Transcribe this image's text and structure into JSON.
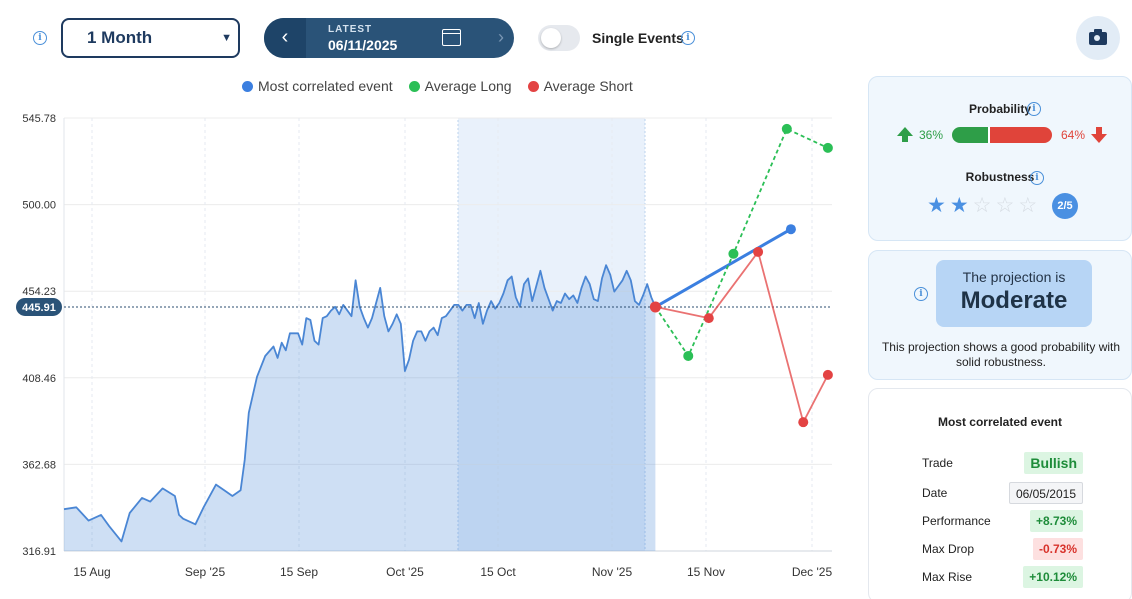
{
  "toolbar": {
    "period": "1 Month",
    "latest_label": "LATEST",
    "latest_date": "06/11/2025",
    "single_events_label": "Single Events"
  },
  "legend": [
    {
      "label": "Most correlated event",
      "color": "#3b7fe0"
    },
    {
      "label": "Average Long",
      "color": "#2bbf56"
    },
    {
      "label": "Average Short",
      "color": "#e34343"
    }
  ],
  "chart_data": {
    "type": "area",
    "y_ticks": [
      "545.78",
      "500.00",
      "454.23",
      "408.46",
      "362.68",
      "316.91"
    ],
    "ylim": [
      316.91,
      545.78
    ],
    "x_ticks": [
      "15 Aug",
      "Sep '25",
      "15 Sep",
      "Oct '25",
      "15 Oct",
      "Nov '25",
      "15 Nov",
      "Dec '25"
    ],
    "current_value_label": "445.91",
    "current_value": 445.91,
    "grid": true,
    "price_series": {
      "x": [
        0,
        3,
        6,
        9,
        11,
        14,
        16,
        19,
        21,
        24,
        27,
        28,
        29,
        32,
        34,
        37,
        39,
        41,
        43,
        44,
        45,
        47,
        49,
        51,
        52,
        53,
        54,
        55,
        57,
        58,
        59,
        60,
        61,
        62,
        63,
        64,
        65,
        66,
        67,
        68,
        70,
        71,
        72,
        73,
        74,
        75,
        76,
        77,
        78,
        79,
        80,
        81,
        82,
        83,
        84,
        85,
        86,
        87,
        88,
        89,
        90,
        91,
        92,
        93,
        94,
        95,
        96,
        97,
        98,
        99,
        100,
        101,
        102,
        103,
        104,
        105,
        106,
        107,
        108,
        109,
        110,
        111,
        112,
        113,
        114,
        115,
        116,
        117,
        118,
        119,
        120,
        121,
        122,
        123,
        124,
        125,
        126,
        127,
        128,
        129,
        130,
        131,
        132,
        133,
        134,
        135,
        136,
        137,
        138,
        139,
        140,
        141,
        142,
        143,
        144
      ],
      "y": [
        339,
        340,
        333,
        336,
        330,
        322,
        337,
        345,
        343,
        350,
        346,
        336,
        334,
        331,
        340,
        352,
        349,
        346,
        349,
        365,
        390,
        409,
        420,
        425,
        419,
        427,
        423,
        432,
        432,
        426,
        440,
        439,
        428,
        426,
        440,
        441,
        444,
        446,
        442,
        447,
        441,
        460,
        446,
        440,
        435,
        440,
        448,
        456,
        441,
        433,
        437,
        442,
        437,
        412,
        418,
        428,
        433,
        433,
        428,
        433,
        435,
        431,
        440,
        441,
        444,
        447,
        447,
        444,
        447,
        447,
        440,
        448,
        437,
        444,
        449,
        445,
        448,
        453,
        460,
        462,
        451,
        446,
        458,
        461,
        449,
        457,
        465,
        456,
        450,
        444,
        449,
        448,
        453,
        450,
        452,
        448,
        456,
        462,
        458,
        450,
        449,
        461,
        468,
        463,
        454,
        457,
        460,
        465,
        460,
        449,
        447,
        452,
        458,
        451,
        445.91
      ]
    },
    "projections": [
      {
        "name": "Most correlated event",
        "color": "#3b7fe0",
        "x": [
          144,
          177
        ],
        "y": [
          445.91,
          487
        ]
      },
      {
        "name": "Average Long",
        "color": "#2bbf56",
        "x": [
          144,
          152,
          163,
          176,
          186
        ],
        "y": [
          445.91,
          420,
          474,
          540,
          530
        ]
      },
      {
        "name": "Average Short",
        "color": "#e34343",
        "x": [
          144,
          157,
          169,
          180,
          186
        ],
        "y": [
          445.91,
          440,
          475,
          385,
          410
        ]
      }
    ]
  },
  "probability": {
    "title": "Probability",
    "up_pct": "36%",
    "down_pct": "64%",
    "up_value": 36,
    "down_value": 64
  },
  "robustness": {
    "title": "Robustness",
    "score_label": "2/5",
    "stars_filled": 2,
    "stars_total": 5
  },
  "projection": {
    "prefix": "The projection is",
    "level": "Moderate",
    "description": "This projection shows a good probability with solid robustness."
  },
  "correlated_event": {
    "title": "Most correlated event",
    "rows": [
      {
        "label": "Trade",
        "value": "Bullish",
        "style": "green bull"
      },
      {
        "label": "Date",
        "value": "06/05/2015",
        "style": "plain"
      },
      {
        "label": "Performance",
        "value": "+8.73%",
        "style": "green"
      },
      {
        "label": "Max Drop",
        "value": "-0.73%",
        "style": "red"
      },
      {
        "label": "Max Rise",
        "value": "+10.12%",
        "style": "green"
      }
    ]
  }
}
